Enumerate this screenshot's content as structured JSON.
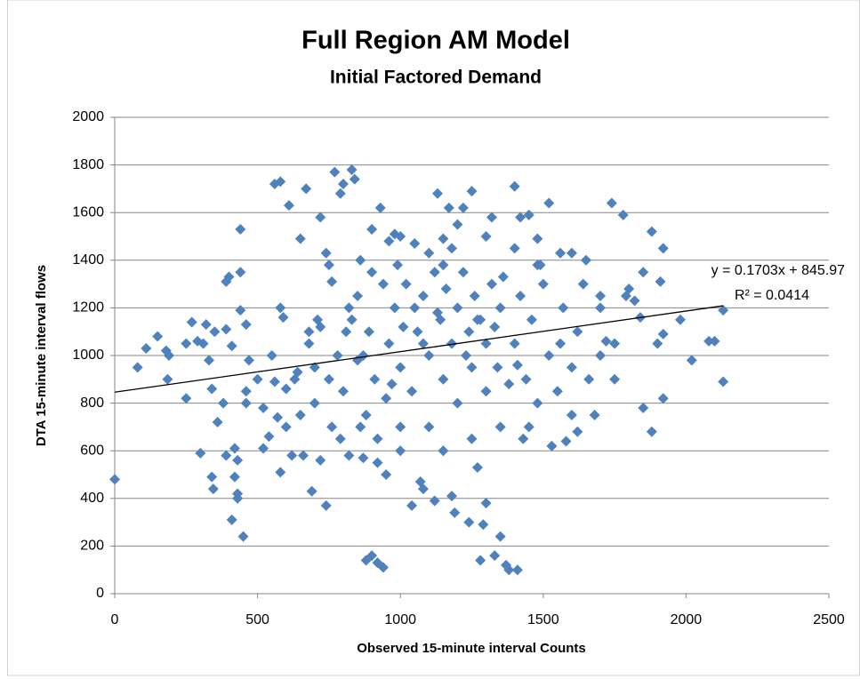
{
  "chart_data": {
    "type": "scatter",
    "title": "Full Region AM Model",
    "subtitle": "Initial Factored Demand",
    "x_label": "Observed 15-minute interval Counts",
    "y_label": "DTA 15-minute interval flows",
    "color": "#4f81bd",
    "x": [
      0,
      80,
      110,
      150,
      180,
      185,
      190,
      250,
      250,
      270,
      290,
      300,
      310,
      320,
      330,
      340,
      340,
      345,
      350,
      360,
      380,
      390,
      390,
      390,
      400,
      410,
      410,
      420,
      420,
      430,
      430,
      430,
      440,
      440,
      440,
      450,
      460,
      460,
      460,
      470,
      500,
      520,
      520,
      540,
      550,
      560,
      570,
      580,
      580,
      580,
      590,
      600,
      610,
      620,
      640,
      650,
      660,
      670,
      680,
      690,
      700,
      710,
      720,
      720,
      740,
      740,
      750,
      760,
      770,
      790,
      800,
      810,
      820,
      830,
      840,
      850,
      860,
      870,
      880,
      900,
      900,
      920,
      930,
      940,
      950,
      960,
      980,
      1000,
      1010,
      1040,
      1050,
      1070,
      1080,
      1100,
      1120,
      1130,
      1150,
      1170,
      1180,
      1190,
      1200,
      1220,
      1240,
      1250,
      1270,
      1280,
      1290,
      1300,
      1320,
      1330,
      1350,
      1370,
      1380,
      1400,
      1410,
      1420,
      1430,
      1450,
      1480,
      1490,
      1520,
      1530,
      1560,
      1580,
      1600,
      1620,
      1650,
      1680,
      1700,
      1720,
      1740,
      1750,
      1780,
      1800,
      1820,
      1840,
      1850,
      1850,
      1880,
      1880,
      1900,
      1910,
      1920,
      1920,
      1920,
      1980,
      2020,
      2080,
      2100,
      2130,
      2130,
      750,
      800,
      820,
      850,
      870,
      880,
      900,
      910,
      920,
      940,
      950,
      960,
      980,
      1000,
      1000,
      1020,
      1040,
      1060,
      1080,
      1100,
      1100,
      1120,
      1140,
      1150,
      1160,
      1180,
      1200,
      1200,
      1220,
      1240,
      1250,
      1260,
      1280,
      1300,
      1300,
      1320,
      1340,
      1350,
      1380,
      1400,
      1420,
      1440,
      1460,
      1480,
      1500,
      1520,
      1550,
      1570,
      1600,
      1620,
      1640,
      1660,
      1700,
      1560,
      700,
      680,
      650,
      630,
      760,
      780,
      790,
      860,
      1180,
      1050,
      990,
      1130,
      1270,
      1230,
      1330,
      1410,
      1480,
      1360,
      1150,
      1080,
      970,
      890,
      830,
      720,
      600,
      560,
      1450,
      1350,
      1250,
      1150,
      1000,
      920,
      1600,
      1700,
      1750,
      1790,
      1400,
      1300
    ],
    "values": [
      480,
      950,
      1030,
      1080,
      1020,
      900,
      1000,
      820,
      1050,
      1140,
      1060,
      590,
      1050,
      1130,
      980,
      860,
      490,
      440,
      1100,
      720,
      800,
      580,
      1110,
      1310,
      1330,
      310,
      1040,
      490,
      610,
      560,
      420,
      400,
      1190,
      1350,
      1530,
      240,
      800,
      850,
      1130,
      980,
      900,
      610,
      780,
      660,
      1000,
      1720,
      740,
      1730,
      510,
      1200,
      1160,
      860,
      1630,
      580,
      930,
      1490,
      580,
      1700,
      1100,
      430,
      800,
      1150,
      1580,
      560,
      370,
      1430,
      1380,
      1310,
      1770,
      1680,
      1720,
      1100,
      580,
      1780,
      1740,
      980,
      1400,
      570,
      140,
      160,
      1530,
      130,
      1620,
      110,
      500,
      1480,
      1510,
      1500,
      1120,
      370,
      1470,
      470,
      440,
      1430,
      390,
      1680,
      1490,
      1620,
      410,
      340,
      1550,
      1620,
      300,
      1690,
      530,
      140,
      290,
      380,
      1580,
      160,
      240,
      120,
      100,
      1710,
      100,
      1580,
      650,
      1590,
      1490,
      1380,
      1640,
      620,
      1430,
      640,
      1430,
      680,
      1400,
      750,
      1250,
      1060,
      1640,
      900,
      1590,
      1280,
      1230,
      1160,
      1350,
      780,
      1520,
      680,
      1050,
      1310,
      1090,
      820,
      1450,
      1150,
      980,
      1060,
      1060,
      1190,
      890,
      900,
      850,
      1200,
      1250,
      1000,
      750,
      1350,
      900,
      650,
      1300,
      820,
      1050,
      1200,
      700,
      950,
      1300,
      850,
      1100,
      1250,
      1000,
      700,
      1350,
      1150,
      900,
      1280,
      1050,
      1200,
      800,
      1350,
      1100,
      950,
      1250,
      1150,
      850,
      1050,
      1300,
      950,
      1200,
      880,
      1050,
      1250,
      900,
      1150,
      800,
      1300,
      1000,
      850,
      1200,
      950,
      1100,
      1300,
      900,
      1000,
      1050,
      950,
      1050,
      750,
      900,
      700,
      1000,
      650,
      700,
      1450,
      1200,
      1380,
      1180,
      1150,
      1000,
      1120,
      960,
      1380,
      1330,
      1380,
      1050,
      880,
      1100,
      1150,
      1120,
      700,
      890,
      700,
      700,
      650,
      600,
      600,
      550,
      750,
      1200,
      1050,
      1250,
      1450,
      1500
    ],
    "trendline": {
      "x": [
        0,
        2130
      ],
      "values": [
        845.97,
        1208.71
      ],
      "equation": "y = 0.1703x + 845.97",
      "r_squared": "R² = 0.0414"
    },
    "xlim": [
      0,
      2500
    ],
    "xticks": [
      0,
      500,
      1000,
      1500,
      2000,
      2500
    ],
    "ylim": [
      0,
      2000
    ],
    "yticks": [
      0,
      200,
      400,
      600,
      800,
      1000,
      1200,
      1400,
      1600,
      1800,
      2000
    ],
    "grid": true
  }
}
